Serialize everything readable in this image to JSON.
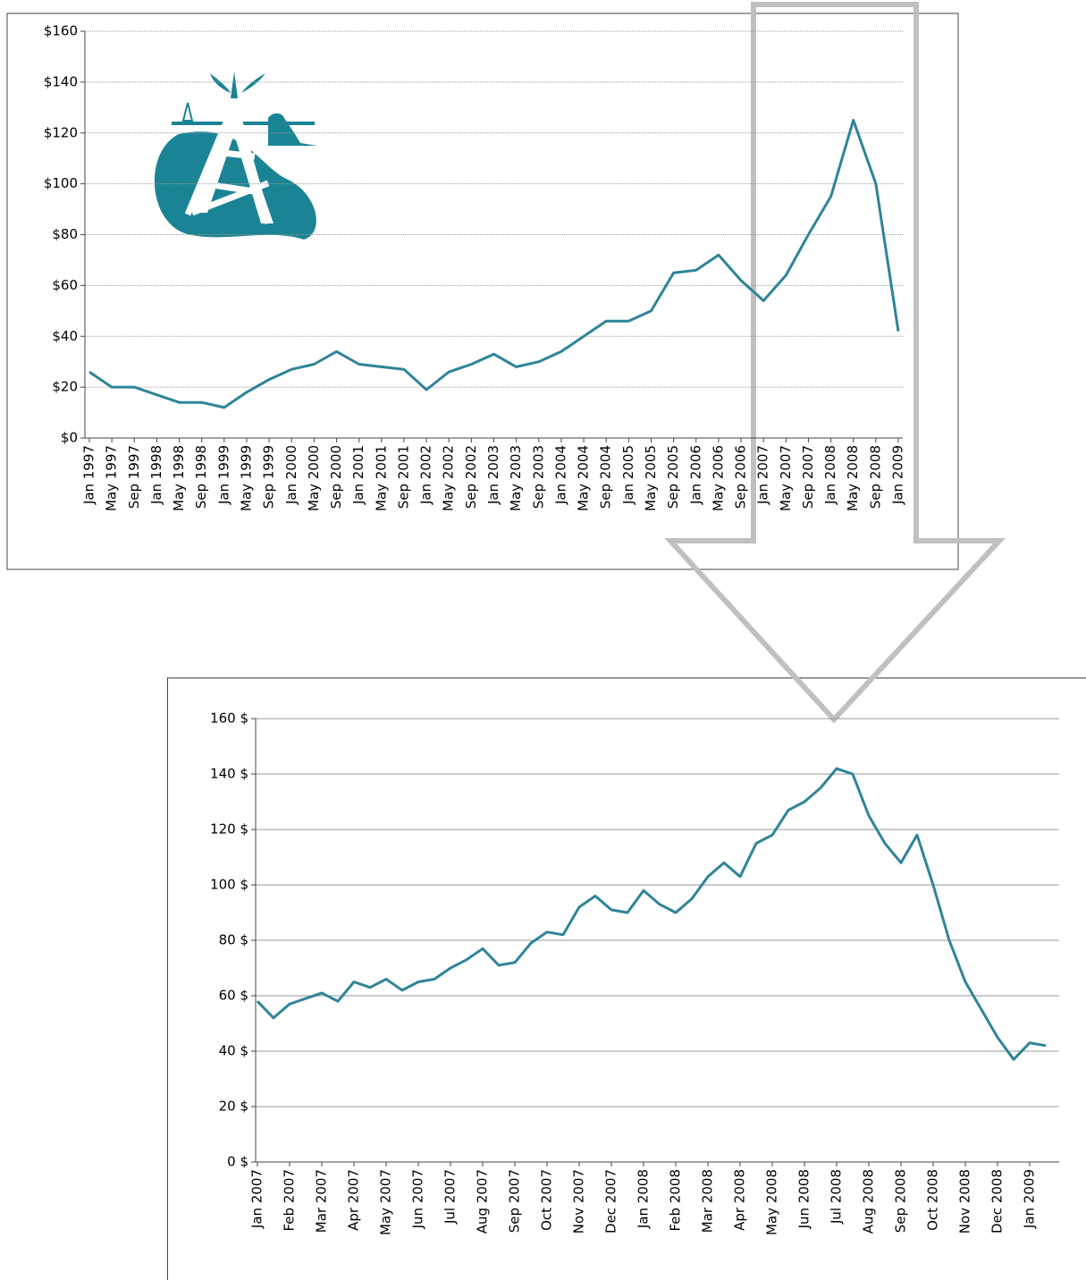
{
  "chart_data": [
    {
      "type": "line",
      "categories": [
        "Jan 1997",
        "May 1997",
        "Sep 1997",
        "Jan 1998",
        "May 1998",
        "Sep 1998",
        "Jan 1999",
        "May 1999",
        "Sep 1999",
        "Jan 2000",
        "May 2000",
        "Sep 2000",
        "Jan 2001",
        "May 2001",
        "Sep 2001",
        "Jan 2002",
        "May 2002",
        "Sep 2002",
        "Jan 2003",
        "May 2003",
        "Sep 2003",
        "Jan 2004",
        "May 2004",
        "Sep 2004",
        "Jan 2005",
        "May 2005",
        "Sep 2005",
        "Jan 2006",
        "May 2006",
        "Sep 2006",
        "Jan 2007",
        "May 2007",
        "Sep 2007",
        "Jan 2008",
        "May 2008",
        "Sep 2008",
        "Jan 2009"
      ],
      "values": [
        26,
        20,
        20,
        17,
        14,
        14,
        12,
        18,
        23,
        27,
        29,
        34,
        29,
        28,
        27,
        19,
        26,
        29,
        33,
        28,
        30,
        34,
        40,
        46,
        46,
        50,
        65,
        66,
        72,
        62,
        54,
        64,
        80,
        95,
        125,
        100,
        42
      ],
      "color": "#2e8499",
      "ylim": [
        0,
        160
      ],
      "yticks": [
        {
          "value": 0,
          "label": "$0"
        },
        {
          "value": 20,
          "label": "$20"
        },
        {
          "value": 40,
          "label": "$40"
        },
        {
          "value": 60,
          "label": "$60"
        },
        {
          "value": 80,
          "label": "$80"
        },
        {
          "value": 100,
          "label": "$100"
        },
        {
          "value": 120,
          "label": "$120"
        },
        {
          "value": 140,
          "label": "$140"
        },
        {
          "value": 160,
          "label": "$160"
        }
      ],
      "grid": true
    },
    {
      "type": "line",
      "categories": [
        "Jan 2007",
        null,
        "Feb 2007",
        null,
        "Mar 2007",
        null,
        "Apr 2007",
        null,
        "May 2007",
        null,
        "Jun 2007",
        null,
        "Jul 2007",
        null,
        "Aug 2007",
        null,
        "Sep 2007",
        null,
        "Oct 2007",
        null,
        "Nov 2007",
        null,
        "Dec 2007",
        null,
        "Jan 2008",
        null,
        "Feb 2008",
        null,
        "Mar 2008",
        null,
        "Apr 2008",
        null,
        "May 2008",
        null,
        "Jun 2008",
        null,
        "Jul 2008",
        null,
        "Aug 2008",
        null,
        "Sep 2008",
        null,
        "Oct 2008",
        null,
        "Nov 2008",
        null,
        "Dec 2008",
        null,
        "Jan 2009",
        null
      ],
      "values": [
        58,
        52,
        57,
        59,
        61,
        58,
        65,
        63,
        66,
        62,
        65,
        66,
        70,
        73,
        77,
        71,
        72,
        79,
        83,
        82,
        92,
        96,
        91,
        90,
        98,
        93,
        90,
        95,
        103,
        108,
        103,
        115,
        118,
        127,
        130,
        135,
        142,
        140,
        125,
        115,
        108,
        118,
        100,
        80,
        65,
        55,
        45,
        37,
        43,
        42
      ],
      "color": "#2e8499",
      "ylim": [
        0,
        160
      ],
      "yticks": [
        {
          "value": 0,
          "label": "0 $"
        },
        {
          "value": 20,
          "label": "20 $"
        },
        {
          "value": 40,
          "label": "40 $"
        },
        {
          "value": 60,
          "label": "60 $"
        },
        {
          "value": 80,
          "label": "80 $"
        },
        {
          "value": 100,
          "label": "100 $"
        },
        {
          "value": 120,
          "label": "120 $"
        },
        {
          "value": 140,
          "label": "140 $"
        },
        {
          "value": 160,
          "label": "160 $"
        }
      ],
      "grid": true
    }
  ]
}
